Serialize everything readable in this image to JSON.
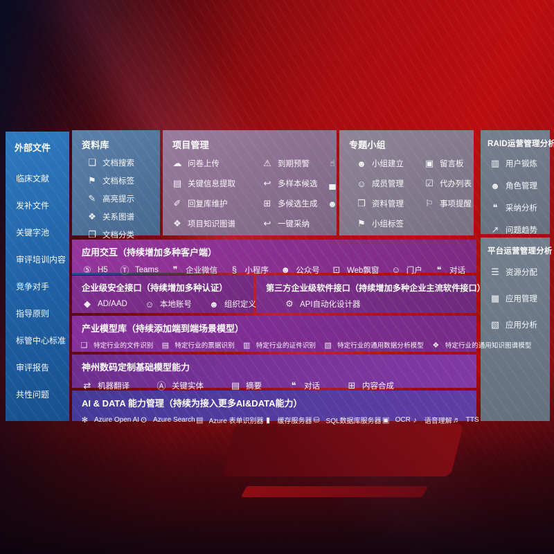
{
  "colors": {
    "wallpaper_red": "#b10d11",
    "sidebar_blue": "#2268ad",
    "purple_row": "#7e2d8c",
    "indigo_row": "#4a3c9c",
    "slate_card": "#6e7789",
    "steel_card": "#4f7aa8",
    "text": "#ffffff"
  },
  "sidebar": {
    "title": "外部文件",
    "items": [
      {
        "name": "sidebar-item-clinical-literature",
        "label": "临床文献"
      },
      {
        "name": "sidebar-item-supplement-files",
        "label": "发补文件"
      },
      {
        "name": "sidebar-item-keyword-pool",
        "label": "关键字池"
      },
      {
        "name": "sidebar-item-review-training",
        "label": "审评培训内容"
      },
      {
        "name": "sidebar-item-competitors",
        "label": "竞争对手"
      },
      {
        "name": "sidebar-item-guidelines",
        "label": "指导原则"
      },
      {
        "name": "sidebar-item-cde-standards",
        "label": "标管中心标准"
      },
      {
        "name": "sidebar-item-review-reports",
        "label": "审评报告"
      },
      {
        "name": "sidebar-item-common-issues",
        "label": "共性问题"
      }
    ]
  },
  "cards": {
    "library": {
      "title": "资料库",
      "items": [
        {
          "name": "item-doc-search",
          "icon": "doc-search-icon",
          "glyph": "❏",
          "label": "文档搜索"
        },
        {
          "name": "item-doc-tags",
          "icon": "tag-icon",
          "glyph": "⚑",
          "label": "文档标签"
        },
        {
          "name": "item-highlight-tip",
          "icon": "pencil-icon",
          "glyph": "✎",
          "label": "高亮提示"
        },
        {
          "name": "item-relation-graph",
          "icon": "graph-icon",
          "glyph": "❖",
          "label": "关系图谱"
        },
        {
          "name": "item-doc-classify",
          "icon": "copy-docs-icon",
          "glyph": "❐",
          "label": "文档分类"
        }
      ]
    },
    "project": {
      "title": "项目管理",
      "items": [
        {
          "name": "item-questionnaire-upload",
          "icon": "cloud-upload-icon",
          "glyph": "☁",
          "label": "问卷上传"
        },
        {
          "name": "item-expiry-alert",
          "icon": "alarm-icon",
          "glyph": "⚠",
          "label": "到期预警"
        },
        {
          "name": "item-like-thanks",
          "icon": "thumbs-up-icon",
          "glyph": "☝",
          "label": "点赞感谢"
        },
        {
          "name": "item-key-info-extract",
          "icon": "extract-doc-icon",
          "glyph": "▤",
          "label": "关键信息提取"
        },
        {
          "name": "item-multi-sample",
          "icon": "reply-arrow-icon",
          "glyph": "↩",
          "label": "多样本候选"
        },
        {
          "name": "item-expert-ranking",
          "icon": "podium-icon",
          "glyph": "▄",
          "label": "内部专家排名"
        },
        {
          "name": "item-reply-library",
          "icon": "pencil-icon",
          "glyph": "✐",
          "label": "回复库维护"
        },
        {
          "name": "item-multi-generate",
          "icon": "grid-icon",
          "glyph": "⊞",
          "label": "多候选生成"
        },
        {
          "name": "item-reviewer-profile",
          "icon": "person-icon",
          "glyph": "☻",
          "label": "评审员画像"
        },
        {
          "name": "item-knowledge-graph",
          "icon": "graph-icon",
          "glyph": "❖",
          "label": "项目知识图谱"
        },
        {
          "name": "item-one-click-adopt",
          "icon": "reply-arrow-icon",
          "glyph": "↩",
          "label": "一键采纳"
        }
      ]
    },
    "groups": {
      "title": "专题小组",
      "items": [
        {
          "name": "item-group-create",
          "icon": "people-icon",
          "glyph": "☻",
          "label": "小组建立"
        },
        {
          "name": "item-message-board",
          "icon": "bbs-board-icon",
          "glyph": "▣",
          "label": "留言板"
        },
        {
          "name": "item-member-manage",
          "icon": "person-add-icon",
          "glyph": "☺",
          "label": "成员管理"
        },
        {
          "name": "item-todo-list",
          "icon": "clipboard-icon",
          "glyph": "☑",
          "label": "代办列表"
        },
        {
          "name": "item-material-manage",
          "icon": "book-icon",
          "glyph": "❒",
          "label": "资料管理"
        },
        {
          "name": "item-reminders",
          "icon": "bell-icon",
          "glyph": "⚐",
          "label": "事项提醒"
        },
        {
          "name": "item-group-tags",
          "icon": "tag-icon",
          "glyph": "⚑",
          "label": "小组标签"
        }
      ]
    },
    "raid": {
      "title": "RAID运营管理分析",
      "items": [
        {
          "name": "item-user-training",
          "icon": "id-card-icon",
          "glyph": "▥",
          "label": "用户锻炼"
        },
        {
          "name": "item-role-manage",
          "icon": "people-icon",
          "glyph": "☻",
          "label": "角色管理"
        },
        {
          "name": "item-adoption-analysis",
          "icon": "qa-chat-icon",
          "glyph": "❝",
          "label": "采纳分析"
        },
        {
          "name": "item-issue-trend",
          "icon": "trend-chart-icon",
          "glyph": "↗",
          "label": "问题趋势"
        }
      ]
    },
    "platform": {
      "title": "平台运营管理分析",
      "items": [
        {
          "name": "item-resource-alloc",
          "icon": "list-icon",
          "glyph": "☰",
          "label": "资源分配"
        },
        {
          "name": "item-app-manage",
          "icon": "app-grid-icon",
          "glyph": "▦",
          "label": "应用管理"
        },
        {
          "name": "item-app-analysis",
          "icon": "chart-icon",
          "glyph": "▧",
          "label": "应用分析"
        }
      ]
    },
    "interaction": {
      "title": "应用交互（持续增加多种客户端）",
      "items": [
        {
          "name": "item-h5",
          "icon": "h5-icon",
          "glyph": "⑤",
          "label": "H5"
        },
        {
          "name": "item-teams",
          "icon": "teams-icon",
          "glyph": "Ⓣ",
          "label": "Teams"
        },
        {
          "name": "item-wecom",
          "icon": "chat-bubble-icon",
          "glyph": "❞",
          "label": "企业微信"
        },
        {
          "name": "item-miniprogram",
          "icon": "miniprogram-icon",
          "glyph": "§",
          "label": "小程序"
        },
        {
          "name": "item-official-account",
          "icon": "people-icon",
          "glyph": "☻",
          "label": "公众号"
        },
        {
          "name": "item-web-popup",
          "icon": "browser-window-icon",
          "glyph": "⊡",
          "label": "Web飘窗"
        },
        {
          "name": "item-portal",
          "icon": "person-icon",
          "glyph": "☺",
          "label": "门户"
        },
        {
          "name": "item-dialog",
          "icon": "chat-people-icon",
          "glyph": "❝",
          "label": "对话"
        }
      ]
    },
    "security": {
      "title": "企业级安全接口（持续增加多种认证）",
      "items": [
        {
          "name": "item-ad-aad",
          "icon": "ad-diamond-icon",
          "glyph": "◆",
          "label": "AD/AAD"
        },
        {
          "name": "item-local-account",
          "icon": "person-icon",
          "glyph": "☺",
          "label": "本地账号"
        },
        {
          "name": "item-org-define",
          "icon": "org-people-icon",
          "glyph": "☻",
          "label": "组织定义"
        }
      ]
    },
    "thirdparty": {
      "title": "第三方企业级软件接口（持续增加多种企业主流软件接口）",
      "items": [
        {
          "name": "item-api-designer",
          "icon": "gear-icon",
          "glyph": "⚙",
          "label": "API自动化设计器"
        }
      ]
    },
    "models": {
      "title": "产业模型库（持续添加端到端场景模型）",
      "items": [
        {
          "name": "item-industry-file-recog",
          "icon": "folder-icon",
          "glyph": "❏",
          "label": "特定行业的文件识别"
        },
        {
          "name": "item-industry-receipt-recog",
          "icon": "receipt-icon",
          "glyph": "▤",
          "label": "特定行业的票据识别"
        },
        {
          "name": "item-industry-id-recog",
          "icon": "id-card-icon",
          "glyph": "▥",
          "label": "特定行业的证件识别"
        },
        {
          "name": "item-industry-data-model",
          "icon": "image-chart-icon",
          "glyph": "▧",
          "label": "特定行业的通用数据分析模型"
        },
        {
          "name": "item-industry-kg-model",
          "icon": "graph-icon",
          "glyph": "❖",
          "label": "特定行业的通用知识图谱模型"
        }
      ]
    },
    "foundation": {
      "title": "神州数码定制基础模型能力",
      "items": [
        {
          "name": "item-machine-translation",
          "icon": "translate-icon",
          "glyph": "⇄",
          "label": "机器翻译"
        },
        {
          "name": "item-key-entity",
          "icon": "shield-a-icon",
          "glyph": "Ⓐ",
          "label": "关键实体"
        },
        {
          "name": "item-summary",
          "icon": "doc-lines-icon",
          "glyph": "▤",
          "label": "摘要"
        },
        {
          "name": "item-dialogue",
          "icon": "chat-bubble-icon",
          "glyph": "❝",
          "label": "对话"
        },
        {
          "name": "item-content-synthesis",
          "icon": "grid-plus-icon",
          "glyph": "⊞",
          "label": "内容合成"
        }
      ]
    },
    "aidata": {
      "title": "AI & DATA 能力管理（持续为接入更多AI&DATA能力）",
      "items": [
        {
          "name": "item-azure-openai",
          "icon": "openai-icon",
          "glyph": "✻",
          "label": "Azure Open AI"
        },
        {
          "name": "item-azure-search",
          "icon": "search-doc-icon",
          "glyph": "ʘ",
          "label": "Azure Search"
        },
        {
          "name": "item-azure-form",
          "icon": "form-icon",
          "glyph": "▤",
          "label": "Azure 表单识别器"
        },
        {
          "name": "item-cache-server",
          "icon": "server-icon",
          "glyph": "▮",
          "label": "缓存服务器"
        },
        {
          "name": "item-sql-server",
          "icon": "database-icon",
          "glyph": "⛁",
          "label": "SQL数据库服务器"
        },
        {
          "name": "item-ocr",
          "icon": "scan-icon",
          "glyph": "▣",
          "label": "OCR"
        },
        {
          "name": "item-speech-understanding",
          "icon": "voice-icon",
          "glyph": "♪",
          "label": "语音理解"
        },
        {
          "name": "item-tts",
          "icon": "speaker-icon",
          "glyph": "♬",
          "label": "TTS"
        }
      ]
    }
  }
}
